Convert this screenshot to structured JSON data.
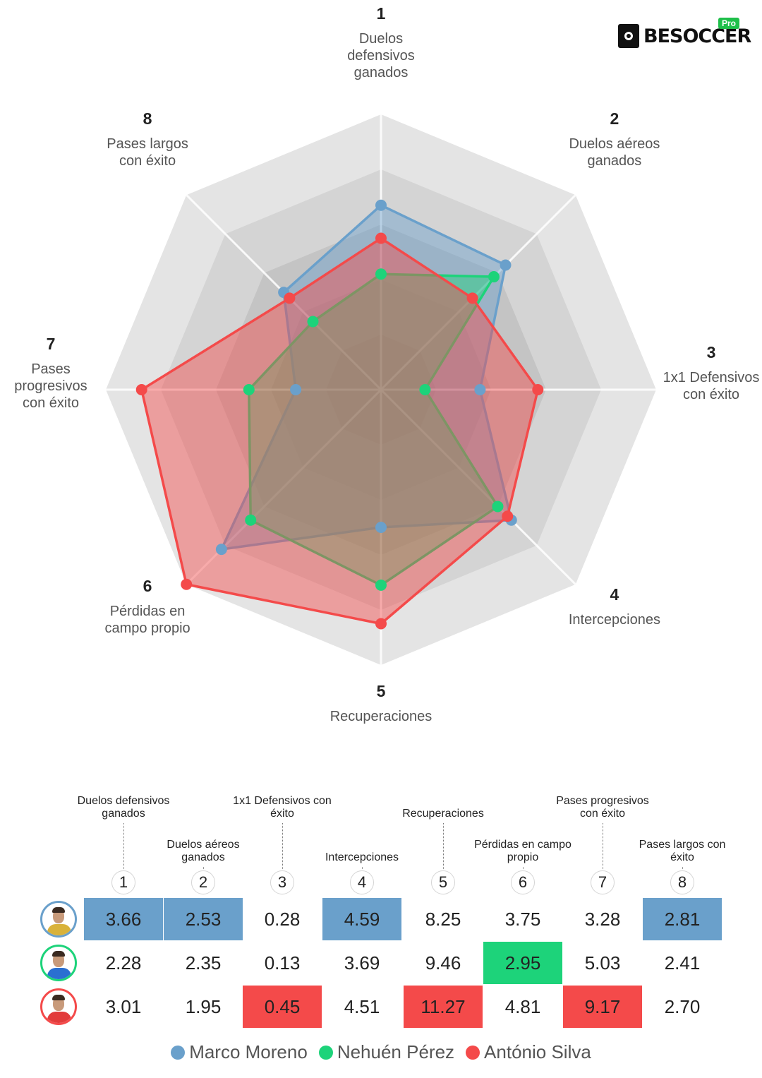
{
  "brand": {
    "name": "BESOCCER",
    "badge": "Pro"
  },
  "chart_data": {
    "type": "radar",
    "axes": [
      {
        "num": "1",
        "label": [
          "Duelos",
          "defensivos",
          "ganados"
        ],
        "table_label": [
          "Duelos defensivos",
          "ganados"
        ]
      },
      {
        "num": "2",
        "label": [
          "Duelos aéreos",
          "ganados"
        ],
        "table_label": [
          "Duelos aéreos",
          "ganados"
        ]
      },
      {
        "num": "3",
        "label": [
          "1x1 Defensivos",
          "con éxito"
        ],
        "table_label": [
          "1x1 Defensivos con",
          "éxito"
        ]
      },
      {
        "num": "4",
        "label": [
          "Intercepciones"
        ],
        "table_label": [
          "Intercepciones"
        ]
      },
      {
        "num": "5",
        "label": [
          "Recuperaciones"
        ],
        "table_label": [
          "Recuperaciones"
        ]
      },
      {
        "num": "6",
        "label": [
          "Pérdidas en",
          "campo propio"
        ],
        "table_label": [
          "Pérdidas en campo",
          "propio"
        ]
      },
      {
        "num": "7",
        "label": [
          "Pases",
          "progresivos",
          "con éxito"
        ],
        "table_label": [
          "Pases progresivos",
          "con éxito"
        ]
      },
      {
        "num": "8",
        "label": [
          "Pases largos",
          "con éxito"
        ],
        "table_label": [
          "Pases largos con",
          "éxito"
        ]
      }
    ],
    "normalized_scale": [
      0,
      1
    ],
    "series": [
      {
        "name": "Marco Moreno",
        "color": "#6aa0cb",
        "values": [
          3.66,
          2.53,
          0.28,
          4.59,
          8.25,
          3.75,
          3.28,
          2.81
        ],
        "display": [
          "3.66",
          "2.53",
          "0.28",
          "4.59",
          "8.25",
          "3.75",
          "3.28",
          "2.81"
        ],
        "normalized": [
          0.67,
          0.64,
          0.36,
          0.67,
          0.5,
          0.82,
          0.31,
          0.5
        ],
        "highlight": [
          true,
          true,
          false,
          true,
          false,
          false,
          false,
          true
        ]
      },
      {
        "name": "Nehuén Pérez",
        "color": "#1dd37a",
        "values": [
          2.28,
          2.35,
          0.13,
          3.69,
          9.46,
          2.95,
          5.03,
          2.41
        ],
        "display": [
          "2.28",
          "2.35",
          "0.13",
          "3.69",
          "9.46",
          "2.95",
          "5.03",
          "2.41"
        ],
        "normalized": [
          0.42,
          0.58,
          0.16,
          0.6,
          0.71,
          0.67,
          0.48,
          0.35
        ],
        "highlight": [
          false,
          false,
          false,
          false,
          false,
          true,
          false,
          false
        ]
      },
      {
        "name": "António Silva",
        "color": "#f44a4a",
        "values": [
          3.01,
          1.95,
          0.45,
          4.51,
          11.27,
          4.81,
          9.17,
          2.7
        ],
        "display": [
          "3.01",
          "1.95",
          "0.45",
          "4.51",
          "11.27",
          "4.81",
          "9.17",
          "2.70"
        ],
        "normalized": [
          0.55,
          0.47,
          0.57,
          0.65,
          0.85,
          1.0,
          0.87,
          0.47
        ],
        "highlight": [
          false,
          false,
          true,
          false,
          true,
          false,
          true,
          false
        ]
      }
    ]
  }
}
